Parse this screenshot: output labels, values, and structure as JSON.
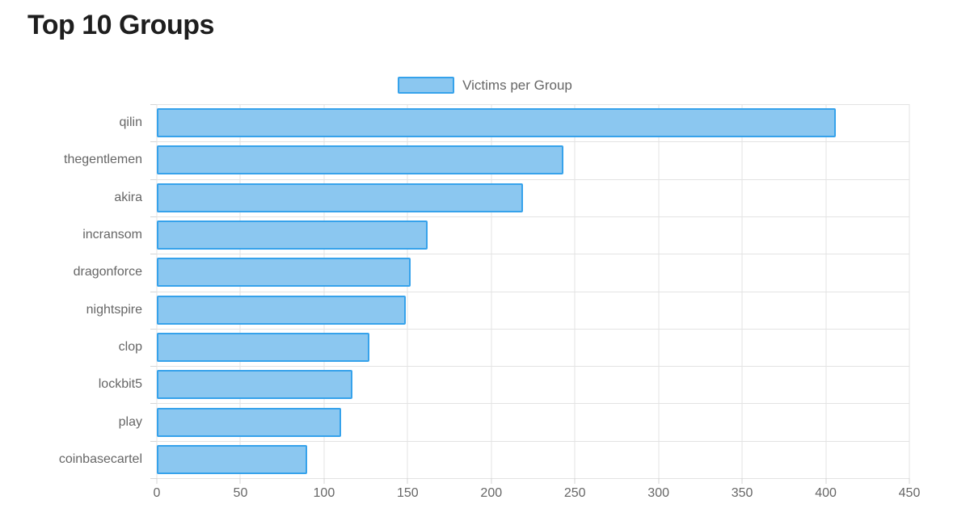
{
  "title": "Top 10 Groups",
  "legend": {
    "label": "Victims per Group"
  },
  "colors": {
    "bar_fill": "#8bc7f0",
    "bar_border": "#36a2eb",
    "grid": "#e3e3e3",
    "tick_mark": "#d6d6d6",
    "axis_text": "#666666",
    "title_text": "#1e1e1e",
    "background": "#ffffff"
  },
  "chart_data": {
    "type": "bar",
    "orientation": "horizontal",
    "title": "Top 10 Groups",
    "series_label": "Victims per Group",
    "categories": [
      "qilin",
      "thegentlemen",
      "akira",
      "incransom",
      "dragonforce",
      "nightspire",
      "clop",
      "lockbit5",
      "play",
      "coinbasecartel"
    ],
    "values": [
      406,
      243,
      219,
      162,
      152,
      149,
      127,
      117,
      110,
      90
    ],
    "xlabel": "",
    "ylabel": "",
    "xlim": [
      0,
      450
    ],
    "xticks": [
      0,
      50,
      100,
      150,
      200,
      250,
      300,
      350,
      400,
      450
    ],
    "xtick_labels": [
      "0",
      "50",
      "100",
      "150",
      "200",
      "250",
      "300",
      "350",
      "400",
      "450"
    ],
    "grid": true,
    "legend_position": "top-center"
  }
}
